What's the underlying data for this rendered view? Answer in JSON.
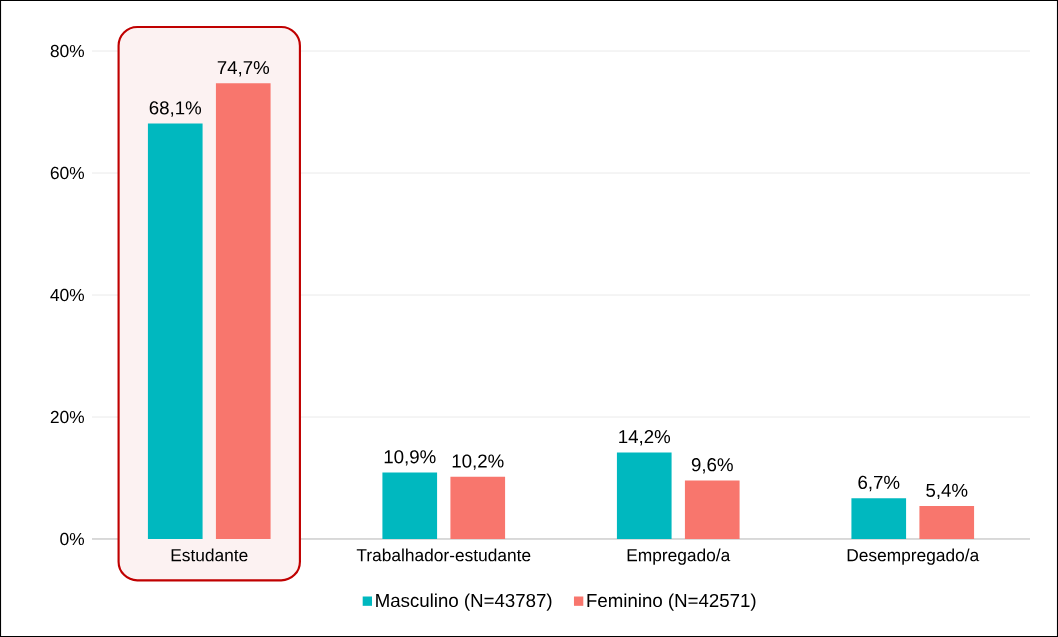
{
  "chart_data": {
    "type": "bar",
    "categories": [
      "Estudante",
      "Trabalhador-estudante",
      "Empregado/a",
      "Desempregado/a"
    ],
    "series": [
      {
        "name": "Masculino (N=43787)",
        "color": "#00b8bf",
        "values": [
          68.1,
          10.9,
          14.2,
          6.7
        ],
        "value_labels": [
          "68,1%",
          "10,9%",
          "14,2%",
          "6,7%"
        ]
      },
      {
        "name": "Feminino (N=42571)",
        "color": "#f8766d",
        "values": [
          74.7,
          10.2,
          9.6,
          5.4
        ],
        "value_labels": [
          "74,7%",
          "10,2%",
          "9,6%",
          "5,4%"
        ]
      }
    ],
    "ylim": [
      0,
      80
    ],
    "yticks": [
      {
        "value": 0,
        "label": "0%"
      },
      {
        "value": 20,
        "label": "20%"
      },
      {
        "value": 40,
        "label": "40%"
      },
      {
        "value": 60,
        "label": "60%"
      },
      {
        "value": 80,
        "label": "80%"
      }
    ],
    "grid": "y",
    "legend": "bottom",
    "bands": [
      {
        "axis": "x",
        "from": "Estudante",
        "to": "Estudante",
        "color": "#c00000"
      }
    ]
  }
}
